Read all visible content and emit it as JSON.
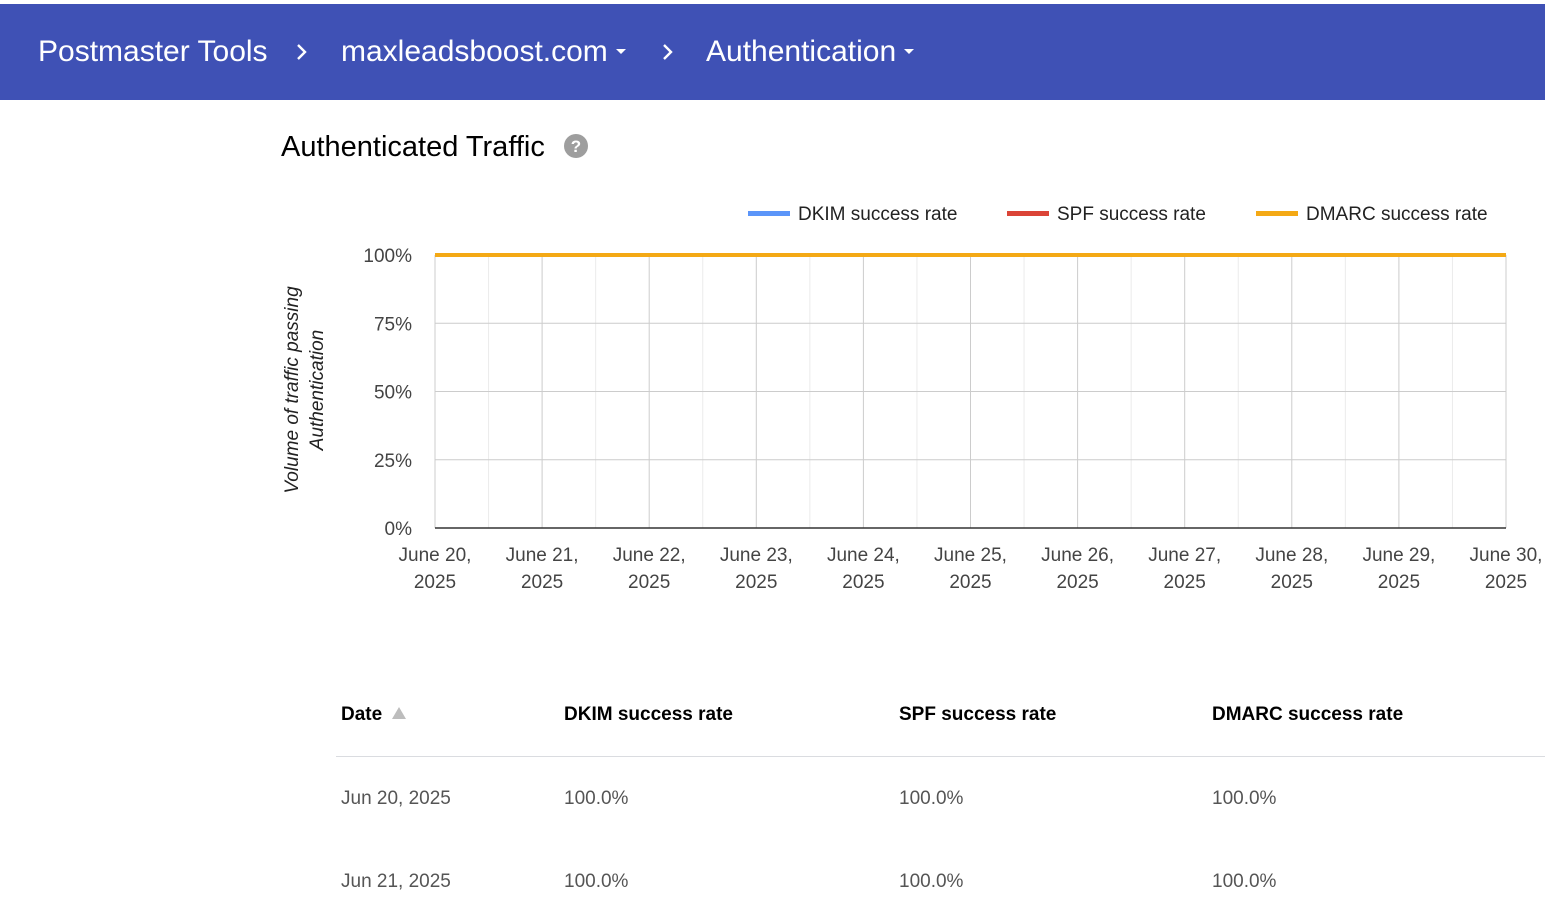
{
  "header": {
    "app_title": "Postmaster Tools",
    "domain": "maxleadsboost.com",
    "page": "Authentication",
    "background": "#3f51b5"
  },
  "section": {
    "title": "Authenticated Traffic",
    "help_icon": "help-circle-icon"
  },
  "chart_data": {
    "type": "line",
    "title": "",
    "ylabel": "Volume of traffic passing Authentication",
    "xlabel": "",
    "x": [
      "June 20, 2025",
      "June 21, 2025",
      "June 22, 2025",
      "June 23, 2025",
      "June 24, 2025",
      "June 25, 2025",
      "June 26, 2025",
      "June 27, 2025",
      "June 28, 2025",
      "June 29, 2025",
      "June 30, 2025"
    ],
    "yticks": [
      "0%",
      "25%",
      "50%",
      "75%",
      "100%"
    ],
    "ylim": [
      0,
      100
    ],
    "grid": true,
    "legend_position": "top-right",
    "series": [
      {
        "name": "DKIM success rate",
        "color": "#5b95f9",
        "values": [
          100,
          100,
          100,
          100,
          100,
          100,
          100,
          100,
          100,
          100,
          100
        ]
      },
      {
        "name": "SPF success rate",
        "color": "#db4437",
        "values": [
          100,
          100,
          100,
          100,
          100,
          100,
          100,
          100,
          100,
          100,
          100
        ]
      },
      {
        "name": "DMARC success rate",
        "color": "#f4a915",
        "values": [
          100,
          100,
          100,
          100,
          100,
          100,
          100,
          100,
          100,
          100,
          100
        ]
      }
    ]
  },
  "table": {
    "columns": [
      "Date",
      "DKIM success rate",
      "SPF success rate",
      "DMARC success rate"
    ],
    "sort_icon": "sort-ascending-icon",
    "rows": [
      [
        "Jun 20, 2025",
        "100.0%",
        "100.0%",
        "100.0%"
      ],
      [
        "Jun 21, 2025",
        "100.0%",
        "100.0%",
        "100.0%"
      ]
    ]
  }
}
